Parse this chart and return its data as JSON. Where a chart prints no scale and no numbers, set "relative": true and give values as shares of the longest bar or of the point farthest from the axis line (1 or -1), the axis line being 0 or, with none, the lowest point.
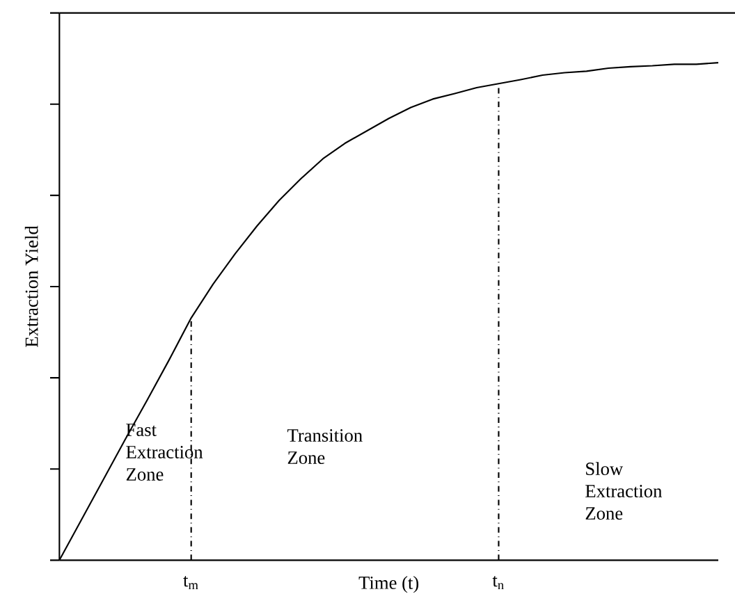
{
  "chart_data": {
    "type": "line",
    "relative": true,
    "xlabel": "Time  (t)",
    "ylabel": "Extraction Yield",
    "categories": [
      null,
      null,
      null,
      null,
      null,
      null,
      "t$_{m}$",
      null,
      null,
      null,
      null,
      null,
      null,
      null,
      null,
      null,
      null,
      null,
      null,
      null,
      "t$_{n}$",
      null,
      null,
      null,
      null,
      null,
      null,
      null,
      null,
      null,
      null
    ],
    "series": [
      {
        "color": "#000000",
        "values": [
          0,
          0.081,
          0.162,
          0.243,
          0.322,
          0.403,
          0.487,
          0.555,
          0.616,
          0.672,
          0.723,
          0.767,
          0.807,
          0.838,
          0.863,
          0.888,
          0.91,
          0.927,
          0.938,
          0.95,
          0.958,
          0.966,
          0.975,
          0.98,
          0.983,
          0.989,
          0.992,
          0.994,
          0.997,
          0.997,
          1.0
        ]
      }
    ],
    "ref_lines": [
      {
        "axis": "x",
        "value": "t$_{m}$",
        "color": "#000000",
        "line_style": "dashdot"
      },
      {
        "axis": "x",
        "value": "t$_{n}$",
        "color": "#000000",
        "line_style": "dashdot"
      }
    ],
    "annotations": [
      "Fast Extraction Zone",
      "Transition Zone",
      "Slow Extraction Zone"
    ],
    "marker": "none",
    "line_style": "solid"
  }
}
